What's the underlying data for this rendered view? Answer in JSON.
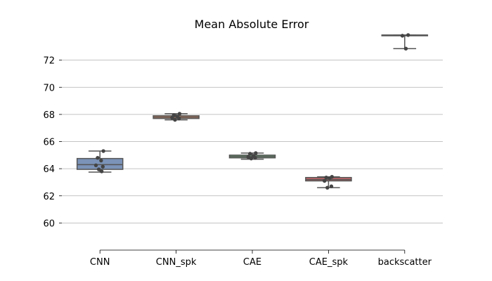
{
  "chart_data": {
    "type": "box",
    "title": "Mean Absolute Error",
    "xlabel": "",
    "ylabel": "",
    "ylim": [
      58.0,
      74.0
    ],
    "yticks": [
      60,
      62,
      64,
      66,
      68,
      70,
      72
    ],
    "grid": "y",
    "legend": "none",
    "categories": [
      "CNN",
      "CNN_spk",
      "CAE",
      "CAE_spk",
      "backscatter"
    ],
    "boxes": [
      {
        "category": "CNN",
        "min": 63.75,
        "q1": 63.95,
        "median": 64.3,
        "q3": 64.75,
        "max": 65.3,
        "color": "#7b93b8",
        "points": [
          65.3,
          64.8,
          64.6,
          64.25,
          64.15,
          63.95,
          63.8
        ]
      },
      {
        "category": "CNN_spk",
        "min": 67.6,
        "q1": 67.7,
        "median": 67.8,
        "q3": 67.9,
        "max": 68.05,
        "color": "#e08a5c",
        "points": [
          68.05,
          67.95,
          67.85,
          67.75,
          67.7,
          67.6
        ]
      },
      {
        "category": "CAE",
        "min": 64.7,
        "q1": 64.8,
        "median": 64.9,
        "q3": 65.0,
        "max": 65.15,
        "color": "#6fa77a",
        "points": [
          65.15,
          65.1,
          64.95,
          64.85,
          64.8,
          64.75
        ]
      },
      {
        "category": "CAE_spk",
        "min": 62.6,
        "q1": 63.1,
        "median": 63.2,
        "q3": 63.35,
        "max": 63.4,
        "color": "#c8676a",
        "points": [
          63.4,
          63.35,
          63.3,
          63.1,
          62.7,
          62.6
        ]
      },
      {
        "category": "backscatter",
        "min": 72.85,
        "q1": 73.8,
        "median": 73.85,
        "q3": 73.85,
        "max": 73.85,
        "color": "#9b86bd",
        "points": [
          73.85,
          73.8,
          72.85
        ]
      }
    ]
  }
}
